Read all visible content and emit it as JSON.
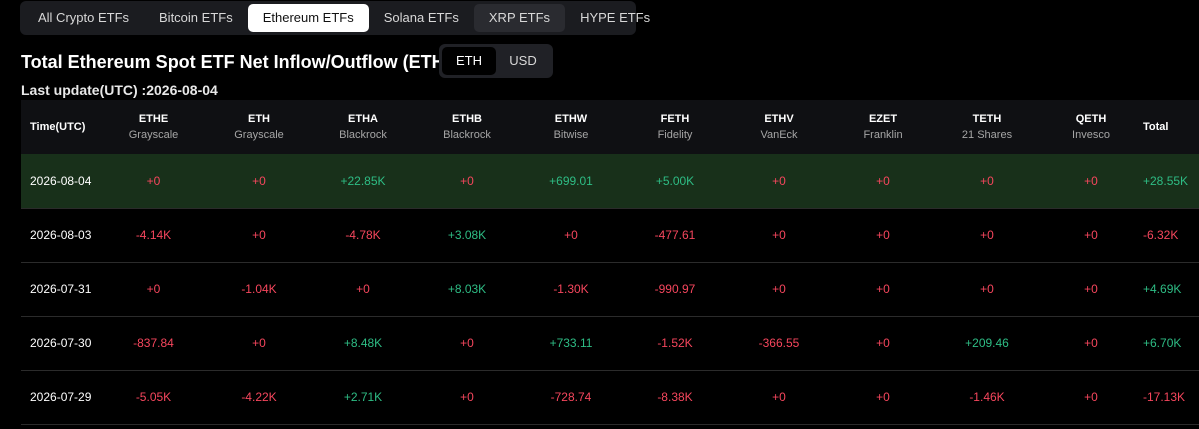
{
  "tabs": [
    {
      "label": "All Crypto ETFs",
      "state": "normal"
    },
    {
      "label": "Bitcoin ETFs",
      "state": "normal"
    },
    {
      "label": "Ethereum ETFs",
      "state": "active"
    },
    {
      "label": "Solana ETFs",
      "state": "normal"
    },
    {
      "label": "XRP ETFs",
      "state": "dim"
    },
    {
      "label": "HYPE ETFs",
      "state": "normal"
    }
  ],
  "title": "Total Ethereum Spot ETF Net Inflow/Outflow (ETH)",
  "unit_toggle": {
    "eth_label": "ETH",
    "usd_label": "USD",
    "selected": "ETH"
  },
  "last_update": "Last update(UTC) :2026-08-04",
  "colors": {
    "positive": "#2ebd85",
    "negative": "#f6465d",
    "highlight_row": "#18301a"
  },
  "table": {
    "time_header": "Time(UTC)",
    "total_header": "Total",
    "funds": [
      {
        "ticker": "ETHE",
        "issuer": "Grayscale"
      },
      {
        "ticker": "ETH",
        "issuer": "Grayscale"
      },
      {
        "ticker": "ETHA",
        "issuer": "Blackrock"
      },
      {
        "ticker": "ETHB",
        "issuer": "Blackrock"
      },
      {
        "ticker": "ETHW",
        "issuer": "Bitwise"
      },
      {
        "ticker": "FETH",
        "issuer": "Fidelity"
      },
      {
        "ticker": "ETHV",
        "issuer": "VanEck"
      },
      {
        "ticker": "EZET",
        "issuer": "Franklin"
      },
      {
        "ticker": "TETH",
        "issuer": "21 Shares"
      },
      {
        "ticker": "QETH",
        "issuer": "Invesco"
      }
    ],
    "rows": [
      {
        "date": "2026-08-04",
        "highlight": true,
        "values": [
          "+0",
          "+0",
          "+22.85K",
          "+0",
          "+699.01",
          "+5.00K",
          "+0",
          "+0",
          "+0",
          "+0"
        ],
        "signs": [
          "neg",
          "neg",
          "pos",
          "neg",
          "pos",
          "pos",
          "neg",
          "neg",
          "neg",
          "neg"
        ],
        "total": "+28.55K",
        "total_sign": "pos"
      },
      {
        "date": "2026-08-03",
        "highlight": false,
        "values": [
          "-4.14K",
          "+0",
          "-4.78K",
          "+3.08K",
          "+0",
          "-477.61",
          "+0",
          "+0",
          "+0",
          "+0"
        ],
        "signs": [
          "neg",
          "neg",
          "neg",
          "pos",
          "neg",
          "neg",
          "neg",
          "neg",
          "neg",
          "neg"
        ],
        "total": "-6.32K",
        "total_sign": "neg"
      },
      {
        "date": "2026-07-31",
        "highlight": false,
        "values": [
          "+0",
          "-1.04K",
          "+0",
          "+8.03K",
          "-1.30K",
          "-990.97",
          "+0",
          "+0",
          "+0",
          "+0"
        ],
        "signs": [
          "neg",
          "neg",
          "neg",
          "pos",
          "neg",
          "neg",
          "neg",
          "neg",
          "neg",
          "neg"
        ],
        "total": "+4.69K",
        "total_sign": "pos"
      },
      {
        "date": "2026-07-30",
        "highlight": false,
        "values": [
          "-837.84",
          "+0",
          "+8.48K",
          "+0",
          "+733.11",
          "-1.52K",
          "-366.55",
          "+0",
          "+209.46",
          "+0"
        ],
        "signs": [
          "neg",
          "neg",
          "pos",
          "neg",
          "pos",
          "neg",
          "neg",
          "neg",
          "pos",
          "neg"
        ],
        "total": "+6.70K",
        "total_sign": "pos"
      },
      {
        "date": "2026-07-29",
        "highlight": false,
        "values": [
          "-5.05K",
          "-4.22K",
          "+2.71K",
          "+0",
          "-728.74",
          "-8.38K",
          "+0",
          "+0",
          "-1.46K",
          "+0"
        ],
        "signs": [
          "neg",
          "neg",
          "pos",
          "neg",
          "neg",
          "neg",
          "neg",
          "neg",
          "neg",
          "neg"
        ],
        "total": "-17.13K",
        "total_sign": "neg"
      }
    ]
  }
}
